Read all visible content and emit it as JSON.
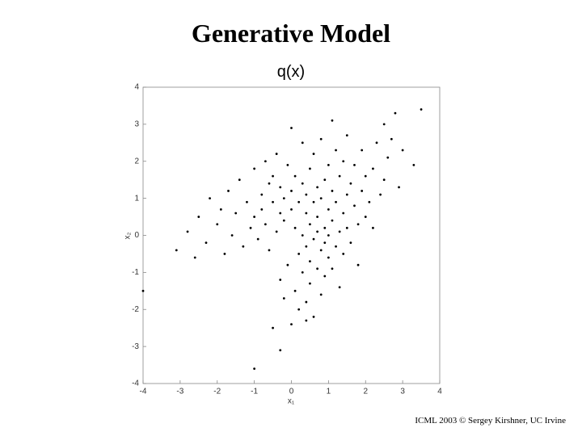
{
  "chart_data": {
    "type": "scatter",
    "title": "Generative Model",
    "subtitle": "q(x)",
    "x_label": "x₁",
    "y_label": "x₂",
    "footer": "ICML 2003 © Sergey Kirshner, UC Irvine",
    "color": "#000000",
    "xlim": [
      -4,
      4
    ],
    "ylim": [
      -4,
      4
    ],
    "xticks": [
      -4,
      -3,
      -2,
      -1,
      0,
      1,
      2,
      3,
      4
    ],
    "yticks": [
      -4,
      -3,
      -2,
      -1,
      0,
      1,
      2,
      3,
      4
    ],
    "x": [
      -3.1,
      -2.8,
      -2.5,
      -2.3,
      -2.2,
      -2.0,
      -1.9,
      -1.8,
      -1.7,
      -1.6,
      -1.5,
      -1.4,
      -1.3,
      -1.2,
      -1.1,
      -1.0,
      -1.0,
      -0.9,
      -0.8,
      -0.8,
      -0.7,
      -0.7,
      -0.6,
      -0.6,
      -0.5,
      -0.5,
      -0.4,
      -0.4,
      -0.3,
      -0.3,
      -0.3,
      -0.2,
      -0.2,
      -0.2,
      -0.1,
      -0.1,
      0.0,
      0.0,
      0.0,
      0.0,
      0.1,
      0.1,
      0.1,
      0.2,
      0.2,
      0.2,
      0.3,
      0.3,
      0.3,
      0.3,
      0.4,
      0.4,
      0.4,
      0.4,
      0.5,
      0.5,
      0.5,
      0.5,
      0.6,
      0.6,
      0.6,
      0.6,
      0.7,
      0.7,
      0.7,
      0.7,
      0.8,
      0.8,
      0.8,
      0.8,
      0.9,
      0.9,
      0.9,
      0.9,
      1.0,
      1.0,
      1.0,
      1.0,
      1.1,
      1.1,
      1.1,
      1.1,
      1.2,
      1.2,
      1.2,
      1.3,
      1.3,
      1.3,
      1.4,
      1.4,
      1.4,
      1.5,
      1.5,
      1.5,
      1.6,
      1.6,
      1.7,
      1.7,
      1.8,
      1.8,
      1.9,
      1.9,
      2.0,
      2.0,
      2.1,
      2.2,
      2.2,
      2.3,
      2.4,
      2.5,
      2.6,
      2.7,
      2.9,
      3.0,
      3.3,
      3.5,
      2.8,
      -4.0,
      -1.0,
      -0.3,
      0.4,
      -0.5,
      -2.6,
      2.5
    ],
    "values": [
      -0.4,
      0.1,
      0.5,
      -0.2,
      1.0,
      0.3,
      0.7,
      -0.5,
      1.2,
      0.0,
      0.6,
      1.5,
      -0.3,
      0.9,
      0.2,
      1.8,
      0.5,
      -0.1,
      1.1,
      0.7,
      2.0,
      0.3,
      1.4,
      -0.4,
      0.9,
      1.6,
      0.1,
      2.2,
      0.6,
      1.3,
      -1.2,
      1.0,
      -1.7,
      0.4,
      1.9,
      -0.8,
      0.7,
      1.2,
      -2.4,
      2.9,
      0.2,
      -1.5,
      1.6,
      0.9,
      -0.5,
      -2.0,
      1.4,
      0.0,
      -1.0,
      2.5,
      0.6,
      -0.3,
      1.1,
      -1.8,
      0.3,
      -0.7,
      1.8,
      -1.3,
      0.9,
      -0.1,
      2.2,
      -2.2,
      0.5,
      -0.9,
      1.3,
      0.1,
      1.0,
      -0.4,
      -1.6,
      2.6,
      0.2,
      1.5,
      -0.2,
      -1.1,
      0.7,
      -0.6,
      1.9,
      0.0,
      0.4,
      -0.9,
      1.2,
      3.1,
      0.9,
      -0.3,
      2.3,
      0.1,
      1.6,
      -1.4,
      0.6,
      -0.5,
      2.0,
      1.1,
      0.2,
      2.7,
      -0.2,
      1.4,
      0.8,
      1.9,
      0.3,
      -0.8,
      1.2,
      2.3,
      0.5,
      1.6,
      0.9,
      1.8,
      0.2,
      2.5,
      1.1,
      1.5,
      2.1,
      2.6,
      1.3,
      2.3,
      1.9,
      3.4,
      3.3,
      -1.5,
      -3.6,
      -3.1,
      -2.3,
      -2.5,
      -0.6,
      3.0
    ]
  }
}
